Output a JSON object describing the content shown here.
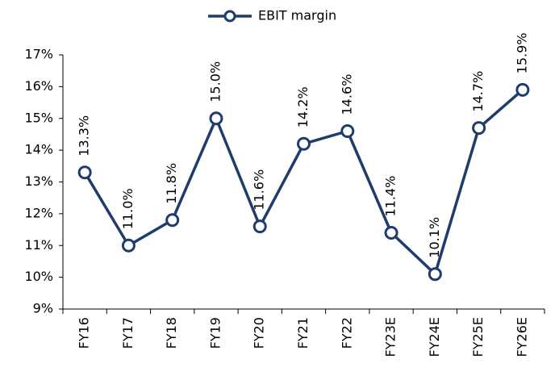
{
  "chart_data": {
    "type": "line",
    "categories": [
      "FY16",
      "FY17",
      "FY18",
      "FY19",
      "FY20",
      "FY21",
      "FY22",
      "FY23E",
      "FY24E",
      "FY25E",
      "FY26E"
    ],
    "series": [
      {
        "name": "EBIT margin",
        "color": "#1f3d6c",
        "values": [
          13.3,
          11.0,
          11.8,
          15.0,
          11.6,
          14.2,
          14.6,
          11.4,
          10.1,
          14.7,
          15.9
        ],
        "value_labels": [
          "13.3%",
          "11.0%",
          "11.8%",
          "15.0%",
          "11.6%",
          "14.2%",
          "14.6%",
          "11.4%",
          "10.1%",
          "14.7%",
          "15.9%"
        ]
      }
    ],
    "ylim": [
      9,
      17
    ],
    "yticks": [
      {
        "value": 9,
        "label": "9%"
      },
      {
        "value": 10,
        "label": "10%"
      },
      {
        "value": 11,
        "label": "11%"
      },
      {
        "value": 12,
        "label": "12%"
      },
      {
        "value": 13,
        "label": "13%"
      },
      {
        "value": 14,
        "label": "14%"
      },
      {
        "value": 15,
        "label": "15%"
      },
      {
        "value": 16,
        "label": "16%"
      },
      {
        "value": 17,
        "label": "17%"
      }
    ],
    "grid": false,
    "legend": "top"
  }
}
